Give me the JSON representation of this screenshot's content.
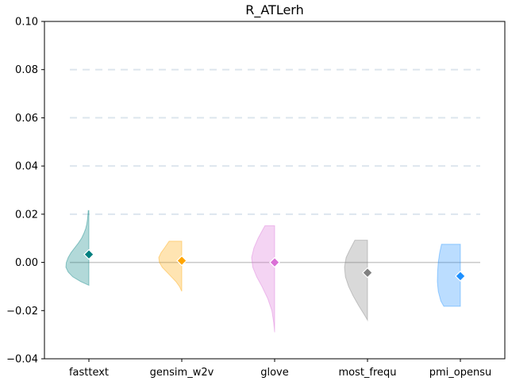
{
  "chart_data": {
    "type": "violin",
    "title": "R_ATLerh",
    "xlabel": "",
    "ylabel": "",
    "ylim": [
      -0.04,
      0.1
    ],
    "yticks": [
      -0.04,
      -0.02,
      0.0,
      0.02,
      0.04,
      0.06,
      0.08,
      0.1
    ],
    "ytick_labels": [
      "−0.04",
      "−0.02",
      "0.00",
      "0.02",
      "0.04",
      "0.06",
      "0.08",
      "0.10"
    ],
    "grid": true,
    "reference_line": 0.0,
    "categories": [
      "fasttext",
      "gensim_w2v",
      "glove",
      "most_frequ",
      "pmi_opensu"
    ],
    "series": [
      {
        "category": "fasttext",
        "color": "#008080",
        "mean": 0.0033,
        "min": -0.0095,
        "max": 0.0215,
        "density": [
          [
            -0.0095,
            0.0
          ],
          [
            -0.008,
            0.35
          ],
          [
            -0.006,
            0.7
          ],
          [
            -0.004,
            0.9
          ],
          [
            -0.002,
            1.0
          ],
          [
            0.0,
            0.98
          ],
          [
            0.002,
            0.9
          ],
          [
            0.004,
            0.78
          ],
          [
            0.006,
            0.62
          ],
          [
            0.008,
            0.46
          ],
          [
            0.01,
            0.32
          ],
          [
            0.012,
            0.22
          ],
          [
            0.014,
            0.14
          ],
          [
            0.016,
            0.09
          ],
          [
            0.018,
            0.06
          ],
          [
            0.02,
            0.04
          ],
          [
            0.0215,
            0.03
          ]
        ]
      },
      {
        "category": "gensim_w2v",
        "color": "#FFA500",
        "mean": 0.0007,
        "min": -0.012,
        "max": 0.0088,
        "density": [
          [
            -0.012,
            0.0
          ],
          [
            -0.01,
            0.1
          ],
          [
            -0.008,
            0.25
          ],
          [
            -0.006,
            0.45
          ],
          [
            -0.004,
            0.65
          ],
          [
            -0.002,
            0.85
          ],
          [
            0.0,
            0.97
          ],
          [
            0.002,
            1.0
          ],
          [
            0.004,
            0.9
          ],
          [
            0.006,
            0.75
          ],
          [
            0.0088,
            0.55
          ]
        ]
      },
      {
        "category": "glove",
        "color": "#DA70D6",
        "mean": 0.0,
        "min": -0.029,
        "max": 0.0152,
        "density": [
          [
            -0.029,
            0.0
          ],
          [
            -0.025,
            0.04
          ],
          [
            -0.02,
            0.12
          ],
          [
            -0.015,
            0.3
          ],
          [
            -0.01,
            0.55
          ],
          [
            -0.006,
            0.78
          ],
          [
            -0.002,
            0.95
          ],
          [
            0.002,
            1.0
          ],
          [
            0.006,
            0.9
          ],
          [
            0.01,
            0.72
          ],
          [
            0.013,
            0.55
          ],
          [
            0.0152,
            0.42
          ]
        ]
      },
      {
        "category": "most_frequ",
        "color": "#808080",
        "mean": -0.0043,
        "min": -0.024,
        "max": 0.0092,
        "density": [
          [
            -0.024,
            0.0
          ],
          [
            -0.022,
            0.12
          ],
          [
            -0.018,
            0.38
          ],
          [
            -0.014,
            0.62
          ],
          [
            -0.01,
            0.82
          ],
          [
            -0.006,
            0.96
          ],
          [
            -0.002,
            1.0
          ],
          [
            0.002,
            0.93
          ],
          [
            0.005,
            0.78
          ],
          [
            0.0092,
            0.55
          ]
        ]
      },
      {
        "category": "pmi_opensu",
        "color": "#1E90FF",
        "mean": -0.0057,
        "min": -0.0182,
        "max": 0.0075,
        "density": [
          [
            -0.0182,
            0.72
          ],
          [
            -0.016,
            0.85
          ],
          [
            -0.012,
            0.96
          ],
          [
            -0.008,
            1.0
          ],
          [
            -0.004,
            0.99
          ],
          [
            0.0,
            0.96
          ],
          [
            0.004,
            0.9
          ],
          [
            0.0075,
            0.82
          ]
        ]
      }
    ]
  }
}
